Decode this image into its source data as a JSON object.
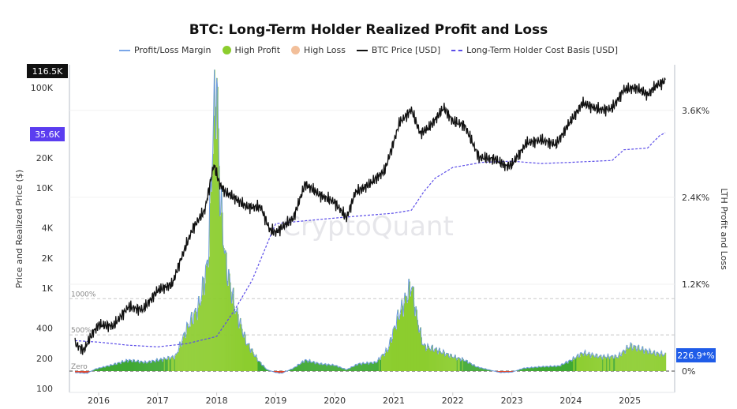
{
  "chart_data": {
    "type": "line",
    "title": "BTC: Long-Term Holder Realized Profit and Loss",
    "legend": [
      {
        "label": "Profit/Loss Margin",
        "color": "#7aa6e8",
        "kind": "line"
      },
      {
        "label": "High Profit",
        "color": "#8ccd2e",
        "kind": "dot"
      },
      {
        "label": "High Loss",
        "color": "#f2bf9a",
        "kind": "dot"
      },
      {
        "label": "BTC Price [USD]",
        "color": "#111111",
        "kind": "line"
      },
      {
        "label": "Long-Term Holder Cost Basis [USD]",
        "color": "#5b4de8",
        "kind": "dash"
      }
    ],
    "legend_position": "top",
    "ylabel_left": "Price and Realized Price ($)",
    "ylabel_right": "LTH Profit and Loss",
    "watermark": "CryptoQuant",
    "x_ticks": [
      "2016",
      "2017",
      "2018",
      "2019",
      "2020",
      "2021",
      "2022",
      "2023",
      "2024",
      "2025"
    ],
    "x_range": [
      2015.5,
      2025.75
    ],
    "y_left": {
      "scale": "log",
      "range": [
        100,
        160000
      ],
      "ticks": [
        {
          "v": 100,
          "l": "100"
        },
        {
          "v": 200,
          "l": "200"
        },
        {
          "v": 400,
          "l": "400"
        },
        {
          "v": 1000,
          "l": "1K"
        },
        {
          "v": 2000,
          "l": "2K"
        },
        {
          "v": 4000,
          "l": "4K"
        },
        {
          "v": 10000,
          "l": "10K"
        },
        {
          "v": 20000,
          "l": "20K"
        },
        {
          "v": 100000,
          "l": "100K"
        }
      ]
    },
    "y_right": {
      "scale": "linear",
      "range": [
        -400,
        4400
      ],
      "ticks": [
        {
          "v": 0,
          "l": "0%"
        },
        {
          "v": 1200,
          "l": "1.2K%"
        },
        {
          "v": 2400,
          "l": "2.4K%"
        },
        {
          "v": 3600,
          "l": "3.6K%"
        }
      ]
    },
    "reference_lines": [
      {
        "v": 1000,
        "l": "1000%"
      },
      {
        "v": 500,
        "l": "500%"
      },
      {
        "v": 0,
        "l": "Zero"
      }
    ],
    "last_values": {
      "btc_price": "116.5K",
      "cost_basis": "35.6K",
      "margin": "226.9*%"
    },
    "colors": {
      "high_profit": "#8ccd2e",
      "profit": "#3fa833",
      "loss": "#e0452a",
      "price": "#111111",
      "cost_basis": "#5b4de8",
      "margin_line": "#6f9be0",
      "price_badge": "#111111",
      "cost_badge": "#5b3df0",
      "margin_badge": "#1f5ce8"
    },
    "series": [
      {
        "name": "BTC Price [USD]",
        "x": [
          2015.6,
          2015.75,
          2015.9,
          2016.0,
          2016.25,
          2016.5,
          2016.75,
          2017.0,
          2017.25,
          2017.4,
          2017.6,
          2017.8,
          2017.95,
          2018.05,
          2018.15,
          2018.3,
          2018.5,
          2018.75,
          2018.9,
          2019.0,
          2019.3,
          2019.5,
          2019.75,
          2020.0,
          2020.2,
          2020.35,
          2020.6,
          2020.85,
          2021.0,
          2021.1,
          2021.3,
          2021.45,
          2021.6,
          2021.85,
          2022.0,
          2022.2,
          2022.45,
          2022.7,
          2022.9,
          2023.0,
          2023.25,
          2023.5,
          2023.75,
          2023.95,
          2024.2,
          2024.5,
          2024.7,
          2024.9,
          2025.1,
          2025.3,
          2025.45,
          2025.6
        ],
        "y": [
          280,
          240,
          360,
          430,
          420,
          650,
          610,
          950,
          1100,
          2000,
          4000,
          6000,
          17000,
          11000,
          9000,
          8000,
          6500,
          6400,
          3800,
          3600,
          5000,
          11000,
          8500,
          7200,
          5000,
          9000,
          11000,
          15000,
          29000,
          45000,
          60000,
          35000,
          40000,
          63000,
          46000,
          42000,
          20000,
          19500,
          16500,
          17000,
          28000,
          30000,
          27000,
          42000,
          70000,
          60000,
          62000,
          95000,
          100000,
          85000,
          105000,
          116500
        ]
      },
      {
        "name": "Long-Term Holder Cost Basis [USD]",
        "x": [
          2015.6,
          2016.0,
          2016.5,
          2017.0,
          2017.5,
          2018.0,
          2018.3,
          2018.6,
          2018.9,
          2019.0,
          2019.5,
          2020.0,
          2020.5,
          2021.0,
          2021.3,
          2021.5,
          2021.7,
          2022.0,
          2022.5,
          2023.0,
          2023.5,
          2024.0,
          2024.7,
          2024.9,
          2025.3,
          2025.5,
          2025.6
        ],
        "y": [
          300,
          290,
          270,
          260,
          280,
          330,
          600,
          1200,
          3200,
          4400,
          4700,
          5000,
          5300,
          5600,
          6000,
          9000,
          12500,
          16000,
          18000,
          18500,
          17500,
          18000,
          18800,
          24000,
          25000,
          33000,
          35600
        ]
      },
      {
        "name": "Profit/Loss Margin",
        "x": [
          2015.6,
          2015.8,
          2015.95,
          2016.2,
          2016.5,
          2016.8,
          2017.0,
          2017.3,
          2017.5,
          2017.7,
          2017.85,
          2017.95,
          2018.0,
          2018.05,
          2018.15,
          2018.3,
          2018.5,
          2018.7,
          2018.85,
          2019.0,
          2019.1,
          2019.3,
          2019.5,
          2019.75,
          2020.0,
          2020.2,
          2020.4,
          2020.7,
          2020.9,
          2021.05,
          2021.2,
          2021.3,
          2021.4,
          2021.5,
          2021.7,
          2021.85,
          2022.0,
          2022.2,
          2022.4,
          2022.6,
          2022.8,
          2023.0,
          2023.2,
          2023.5,
          2023.8,
          2024.0,
          2024.2,
          2024.5,
          2024.8,
          2025.0,
          2025.2,
          2025.4,
          2025.6
        ],
        "y": [
          -20,
          -30,
          30,
          80,
          150,
          120,
          150,
          200,
          600,
          900,
          1500,
          3500,
          4000,
          2500,
          1500,
          900,
          400,
          150,
          20,
          -20,
          -30,
          40,
          150,
          100,
          80,
          20,
          100,
          120,
          300,
          700,
          1000,
          1200,
          700,
          350,
          300,
          250,
          200,
          150,
          60,
          20,
          -20,
          -15,
          40,
          60,
          70,
          150,
          250,
          200,
          200,
          350,
          300,
          250,
          226.9
        ]
      }
    ]
  }
}
